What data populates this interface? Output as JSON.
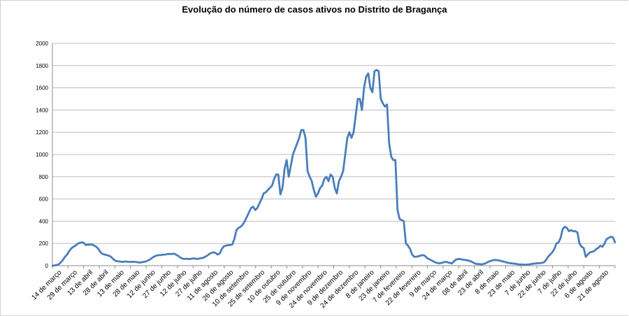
{
  "chart_data": {
    "type": "line",
    "title": "Evolução do número de casos ativos no Distrito de Bragança",
    "xlabel": "",
    "ylabel": "",
    "ylim": [
      0,
      2000
    ],
    "yticks": [
      0,
      200,
      400,
      600,
      800,
      1000,
      1200,
      1400,
      1600,
      1800,
      2000
    ],
    "grid": true,
    "legend": "none",
    "line_color": "#4a7ebb",
    "x_start": "14 de março",
    "x_end": "5 de setembro",
    "xtick_labels": [
      "14 de março",
      "29 de março",
      "13 de abril",
      "28 de abril",
      "13 de maio",
      "28 de maio",
      "12 de junho",
      "27 de junho",
      "12 de julho",
      "27 de julho",
      "11 de agosto",
      "26 de agosto",
      "10 de setembro",
      "25 de setembro",
      "10 de outubro",
      "25 de outubro",
      "9 de novembro",
      "24 de novembro",
      "9 de dezembro",
      "24 de dezembro",
      "8 de janeiro",
      "23 de janeiro",
      "7 de fevereiro",
      "22 de fevereiro",
      "9 de março",
      "24 de março",
      "08 de abril",
      "23 de abril",
      "8 de maio",
      "23 de maio",
      "7 de junho",
      "22 de junho",
      "7 de julho",
      "22 de julho",
      "6 de agosto",
      "21 de agosto"
    ],
    "series": [
      {
        "values": [
          0,
          2,
          5,
          12,
          30,
          50,
          80,
          100,
          130,
          155,
          170,
          180,
          195,
          205,
          210,
          205,
          185,
          190,
          190,
          190,
          180,
          170,
          150,
          120,
          105,
          100,
          95,
          90,
          80,
          60,
          45,
          40,
          38,
          35,
          35,
          38,
          35,
          33,
          35,
          35,
          33,
          30,
          28,
          32,
          35,
          40,
          50,
          60,
          75,
          85,
          92,
          95,
          95,
          100,
          100,
          105,
          105,
          105,
          108,
          100,
          90,
          75,
          65,
          60,
          62,
          60,
          60,
          65,
          65,
          60,
          62,
          68,
          70,
          80,
          90,
          105,
          115,
          120,
          115,
          100,
          110,
          150,
          175,
          180,
          185,
          185,
          190,
          240,
          320,
          340,
          350,
          370,
          400,
          440,
          480,
          520,
          530,
          500,
          520,
          560,
          600,
          650,
          660,
          680,
          700,
          720,
          780,
          820,
          820,
          640,
          700,
          870,
          950,
          800,
          900,
          1000,
          1050,
          1100,
          1150,
          1220,
          1220,
          1150,
          850,
          800,
          760,
          680,
          620,
          650,
          700,
          720,
          780,
          800,
          760,
          820,
          800,
          700,
          650,
          760,
          800,
          850,
          1000,
          1150,
          1200,
          1150,
          1200,
          1350,
          1500,
          1500,
          1400,
          1600,
          1700,
          1730,
          1600,
          1560,
          1750,
          1760,
          1750,
          1500,
          1460,
          1430,
          1450,
          1100,
          980,
          950,
          950,
          500,
          420,
          410,
          400,
          200,
          180,
          150,
          100,
          80,
          80,
          85,
          90,
          95,
          90,
          70,
          60,
          50,
          40,
          30,
          25,
          20,
          25,
          30,
          35,
          30,
          25,
          20,
          40,
          55,
          60,
          60,
          55,
          52,
          50,
          45,
          40,
          30,
          20,
          15,
          15,
          12,
          15,
          20,
          30,
          40,
          45,
          50,
          52,
          48,
          45,
          40,
          35,
          30,
          25,
          22,
          20,
          18,
          15,
          12,
          10,
          10,
          8,
          10,
          12,
          15,
          18,
          20,
          22,
          22,
          25,
          30,
          50,
          80,
          100,
          120,
          150,
          200,
          210,
          250,
          330,
          350,
          340,
          310,
          320,
          310,
          310,
          300,
          200,
          170,
          160,
          80,
          100,
          120,
          125,
          130,
          150,
          160,
          180,
          170,
          200,
          240,
          250,
          260,
          255,
          210
        ]
      }
    ]
  }
}
